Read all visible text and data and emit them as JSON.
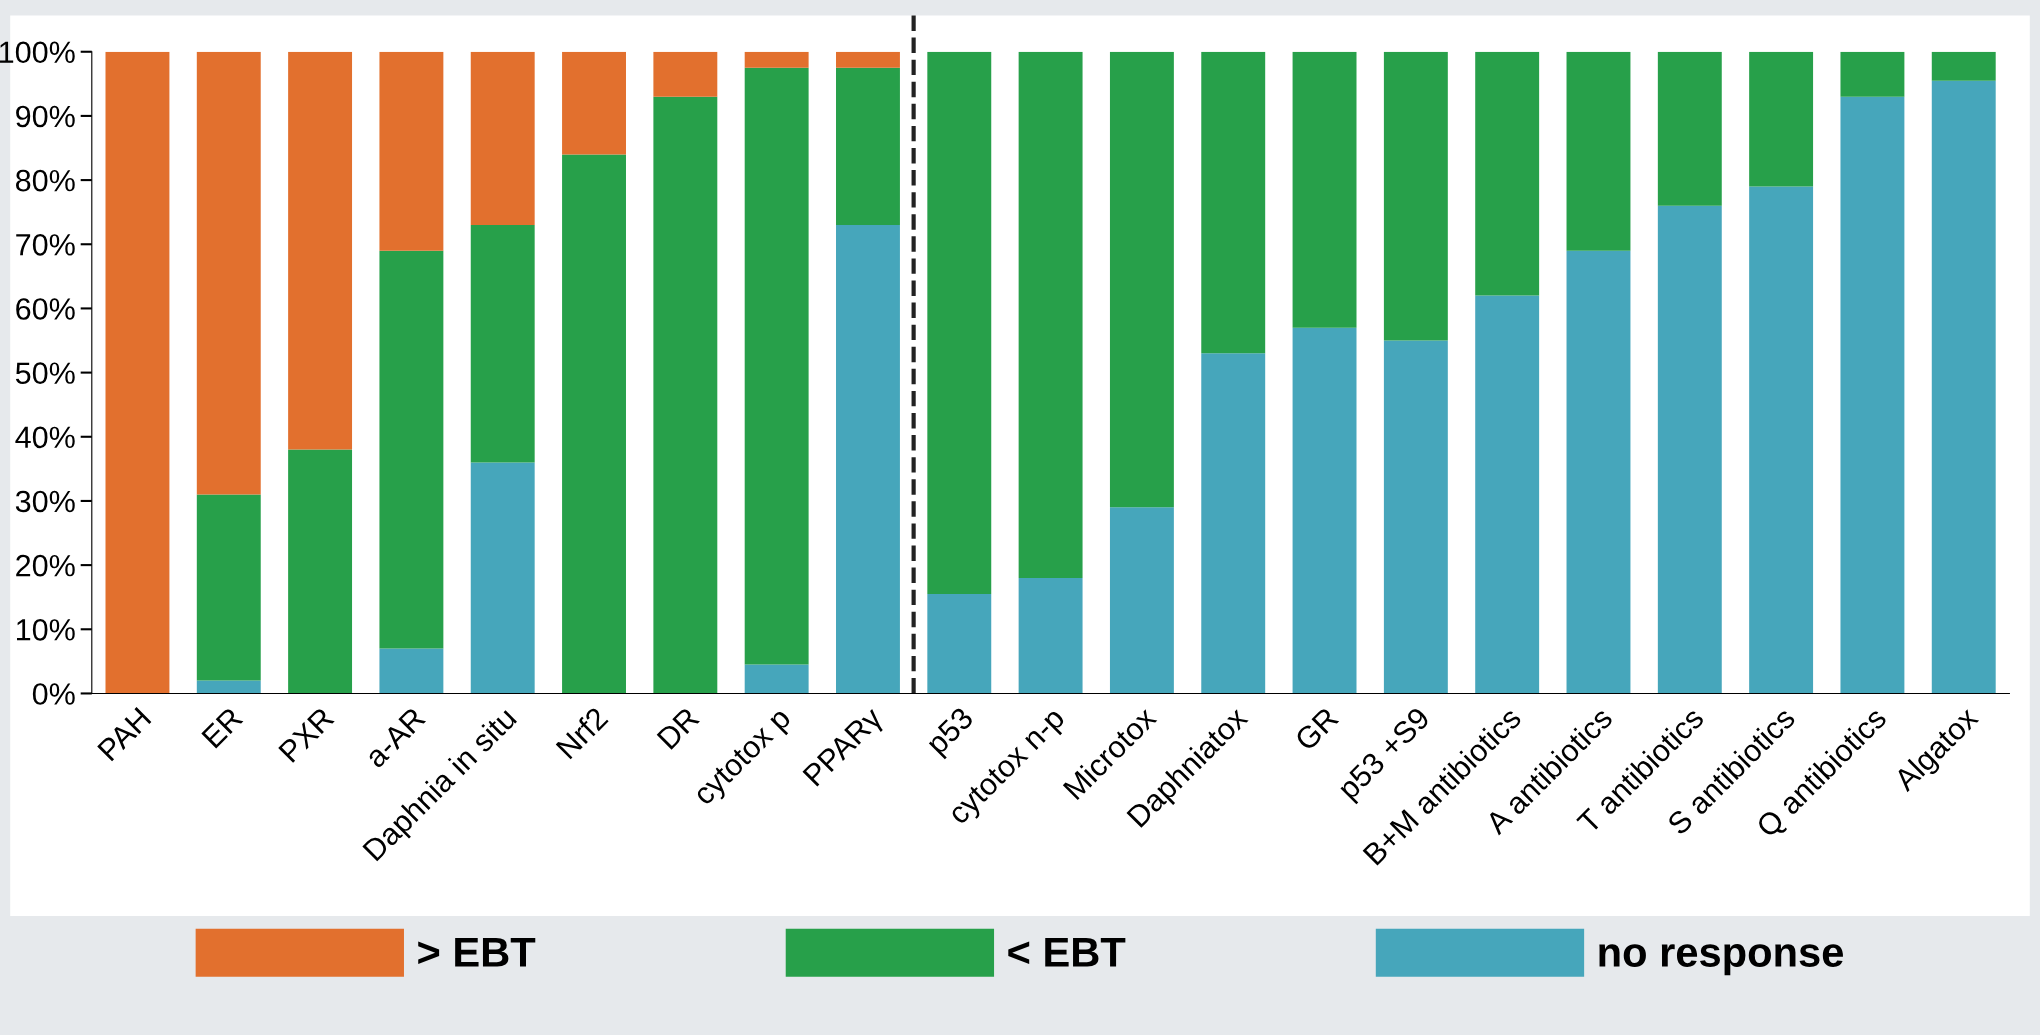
{
  "chart_data": {
    "type": "bar",
    "stacked": true,
    "categories": [
      "PAH",
      "ER",
      "PXR",
      "a-AR",
      "Daphnia in situ",
      "Nrf2",
      "DR",
      "cytotox p",
      "PPARγ",
      "p53",
      "cytotox n-p",
      "Microtox",
      "Daphniatox",
      "GR",
      "p53 +S9",
      "B+M antibiotics",
      "A antibiotics",
      "T antibiotics",
      "S antibiotics",
      "Q antibiotics",
      "Algatox"
    ],
    "series": [
      {
        "name": "no response",
        "color": "#46a6bb",
        "values": [
          0,
          2,
          0,
          7,
          36,
          0,
          0,
          4.5,
          73,
          15.5,
          18,
          29,
          53,
          57,
          55,
          62,
          69,
          76,
          79,
          93,
          95.5
        ]
      },
      {
        "name": "< EBT",
        "color": "#27a04a",
        "values": [
          0,
          29,
          38,
          62,
          37,
          84,
          93,
          93,
          24.5,
          84.5,
          82,
          71,
          47,
          43,
          45,
          38,
          31,
          24,
          21,
          7,
          4.5
        ]
      },
      {
        "name": "> EBT",
        "color": "#e2702e",
        "values": [
          100,
          69,
          62,
          31,
          27,
          16,
          7,
          2.5,
          2.5,
          0,
          0,
          0,
          0,
          0,
          0,
          0,
          0,
          0,
          0,
          0,
          0
        ]
      }
    ],
    "ylim": [
      0,
      100
    ],
    "yticks": [
      {
        "value": 0,
        "label": "0%"
      },
      {
        "value": 10,
        "label": "10%"
      },
      {
        "value": 20,
        "label": "20%"
      },
      {
        "value": 30,
        "label": "30%"
      },
      {
        "value": 40,
        "label": "40%"
      },
      {
        "value": 50,
        "label": "50%"
      },
      {
        "value": 60,
        "label": "60%"
      },
      {
        "value": 70,
        "label": "70%"
      },
      {
        "value": 80,
        "label": "80%"
      },
      {
        "value": 90,
        "label": "90%"
      },
      {
        "value": 100,
        "label": "100%"
      }
    ],
    "grid": false,
    "legend": "bottom"
  }
}
